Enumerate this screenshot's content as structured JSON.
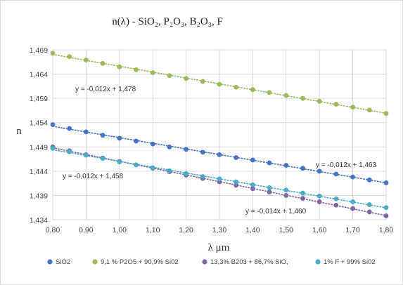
{
  "chart_data": {
    "type": "scatter",
    "title": "n(λ) - SiO₂, P₂O₃, B₂O₃, F",
    "xlabel": "λ  μm",
    "ylabel": "n",
    "xlim": [
      0.8,
      1.8
    ],
    "ylim": [
      1.434,
      1.469
    ],
    "x_ticks": [
      "0,80",
      "0,90",
      "1,00",
      "1,10",
      "1,20",
      "1,30",
      "1,40",
      "1,50",
      "1,60",
      "1,70",
      "1,80"
    ],
    "y_ticks": [
      "1,434",
      "1,439",
      "1,444",
      "1,449",
      "1,454",
      "1,459",
      "1,464",
      "1,469"
    ],
    "grid": true,
    "legend_position": "bottom",
    "x": [
      0.8,
      0.85,
      0.9,
      0.95,
      1.0,
      1.05,
      1.1,
      1.15,
      1.2,
      1.25,
      1.3,
      1.35,
      1.4,
      1.45,
      1.5,
      1.55,
      1.6,
      1.65,
      1.7,
      1.75,
      1.8
    ],
    "series": [
      {
        "name": "SiO2",
        "color": "#4472c4",
        "values": [
          1.4536,
          1.4528,
          1.4521,
          1.4514,
          1.4508,
          1.4502,
          1.4496,
          1.449,
          1.4485,
          1.4479,
          1.4474,
          1.4468,
          1.4463,
          1.4457,
          1.4452,
          1.4446,
          1.444,
          1.4434,
          1.4428,
          1.4422,
          1.4416
        ],
        "trendline": "y = -0,012x + 1,463"
      },
      {
        "name": "9,1 % P2O5 + 90,9% Si02",
        "color": "#9bbb59",
        "values": [
          1.4683,
          1.4676,
          1.4669,
          1.4662,
          1.4655,
          1.4649,
          1.4643,
          1.4637,
          1.4631,
          1.4625,
          1.4619,
          1.4613,
          1.4608,
          1.4602,
          1.4596,
          1.459,
          1.4584,
          1.4578,
          1.4572,
          1.4566,
          1.4559
        ],
        "trendline": "y = -0,012x + 1,478"
      },
      {
        "name": "13,3% B203 + 86,7% SiO,",
        "color": "#8064a2",
        "values": [
          1.449,
          1.4482,
          1.4474,
          1.4467,
          1.446,
          1.4453,
          1.4446,
          1.4439,
          1.4432,
          1.4425,
          1.4418,
          1.4411,
          1.4404,
          1.4397,
          1.439,
          1.4384,
          1.4377,
          1.437,
          1.4363,
          1.4356,
          1.4348
        ],
        "trendline": "y = -0,014x + 1,460"
      },
      {
        "name": "1% F + 99% Si02",
        "color": "#4bacc6",
        "values": [
          1.4487,
          1.448,
          1.4473,
          1.4466,
          1.4459,
          1.4453,
          1.4447,
          1.4441,
          1.4435,
          1.4429,
          1.4424,
          1.4418,
          1.4412,
          1.4406,
          1.4401,
          1.4395,
          1.4389,
          1.4383,
          1.4377,
          1.4371,
          1.4365
        ],
        "trendline": "y = -0,012x + 1,458"
      }
    ]
  }
}
